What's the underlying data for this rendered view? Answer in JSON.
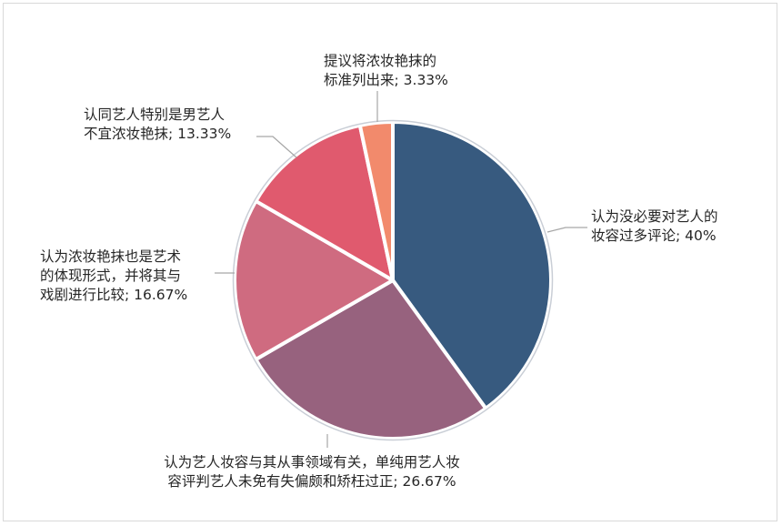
{
  "chart_data": {
    "type": "pie",
    "title": "",
    "legend": "none",
    "start_angle_deg": 0,
    "direction": "clockwise",
    "slices": [
      {
        "name": "认为没必要对艺人的妆容过多评论",
        "value": 40,
        "value_label": "40%",
        "lines": [
          "认为没必要对艺人的",
          "妆容过多评论; 40%"
        ],
        "color": "#375a7f"
      },
      {
        "name": "认为艺人妆容与其从事领域有关，单纯用艺人妆容评判艺人未免有失偏颇和矫枉过正",
        "value": 26.67,
        "value_label": "26.67%",
        "lines": [
          "认为艺人妆容与其从事领域有关，单纯用艺人妆",
          "容评判艺人未免有失偏颇和矫枉过正; 26.67%"
        ],
        "color": "#97627e"
      },
      {
        "name": "认为浓妆艳抹也是艺术的体现形式，并将其与戏剧进行比较",
        "value": 16.67,
        "value_label": "16.67%",
        "lines": [
          "认为浓妆艳抹也是艺术",
          "的体现形式，并将其与",
          "戏剧进行比较; 16.67%"
        ],
        "color": "#cf6b80"
      },
      {
        "name": "认同艺人特别是男艺人不宜浓妆艳抹",
        "value": 13.33,
        "value_label": "13.33%",
        "lines": [
          "认同艺人特别是男艺人",
          "不宜浓妆艳抹; 13.33%"
        ],
        "color": "#e05a6e"
      },
      {
        "name": "提议将浓妆艳抹的标准列出来",
        "value": 3.33,
        "value_label": "3.33%",
        "lines": [
          "提议将浓妆艳抹的",
          "标准列出来; 3.33%"
        ],
        "color": "#f28a6c"
      }
    ]
  }
}
